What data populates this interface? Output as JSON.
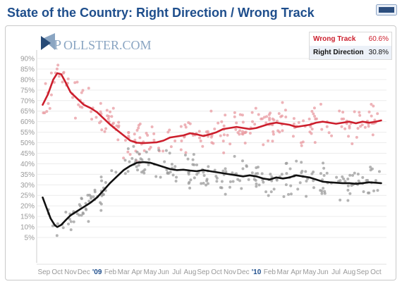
{
  "page": {
    "title": "State of the Country: Right Direction / Wrong Track",
    "expand_icon": "expand-window-icon",
    "logo": {
      "prefix": "P",
      "text": "OLLSTER.COM",
      "icon": "pollster-logo-icon"
    }
  },
  "legend": [
    {
      "name": "Wrong Track",
      "value": "60.6%",
      "color": "#cc1e2c"
    },
    {
      "name": "Right Direction",
      "value": "30.8%",
      "color": "#111111"
    }
  ],
  "chart_data": {
    "type": "line",
    "title": "State of the Country: Right Direction / Wrong Track",
    "xlabel": "",
    "ylabel": "",
    "ylim": [
      0,
      92
    ],
    "x_month_range": [
      "2008-09",
      "2010-10"
    ],
    "y_ticks": [
      "90%",
      "85%",
      "80%",
      "75%",
      "70%",
      "65%",
      "60%",
      "55%",
      "50%",
      "45%",
      "40%",
      "35%",
      "30%",
      "25%",
      "20%",
      "15%",
      "10%",
      "5%"
    ],
    "x_ticks": [
      {
        "label": "Sep",
        "m": 0
      },
      {
        "label": "Oct",
        "m": 1
      },
      {
        "label": "Nov",
        "m": 2
      },
      {
        "label": "Dec",
        "m": 3
      },
      {
        "label": "'09",
        "m": 4,
        "year": true
      },
      {
        "label": "Feb",
        "m": 5
      },
      {
        "label": "Mar",
        "m": 6
      },
      {
        "label": "Apr",
        "m": 7
      },
      {
        "label": "May",
        "m": 8
      },
      {
        "label": "Jun",
        "m": 9
      },
      {
        "label": "Jul",
        "m": 10
      },
      {
        "label": "Aug",
        "m": 11
      },
      {
        "label": "Sep",
        "m": 12
      },
      {
        "label": "Oct",
        "m": 13
      },
      {
        "label": "Nov",
        "m": 14
      },
      {
        "label": "Dec",
        "m": 15
      },
      {
        "label": "'10",
        "m": 16,
        "year": true
      },
      {
        "label": "Feb",
        "m": 17
      },
      {
        "label": "Mar",
        "m": 18
      },
      {
        "label": "Apr",
        "m": 19
      },
      {
        "label": "May",
        "m": 20
      },
      {
        "label": "Jun",
        "m": 21
      },
      {
        "label": "Jul",
        "m": 22
      },
      {
        "label": "Aug",
        "m": 23
      },
      {
        "label": "Sep",
        "m": 24
      },
      {
        "label": "Oct",
        "m": 25
      }
    ],
    "grid": true,
    "legend_position": "top-right",
    "series": [
      {
        "name": "Wrong Track",
        "color": "#cc1e2c",
        "dot_color": "#e89aa0",
        "trend": [
          [
            -0.1,
            68
          ],
          [
            0.3,
            73
          ],
          [
            0.7,
            80
          ],
          [
            1.0,
            83
          ],
          [
            1.3,
            82.5
          ],
          [
            1.6,
            79
          ],
          [
            2.0,
            74
          ],
          [
            2.5,
            71
          ],
          [
            3.0,
            68
          ],
          [
            3.5,
            66.5
          ],
          [
            4.0,
            64.5
          ],
          [
            4.5,
            61.5
          ],
          [
            5.0,
            58.5
          ],
          [
            5.5,
            56
          ],
          [
            6.0,
            53.5
          ],
          [
            6.5,
            51
          ],
          [
            7.0,
            50
          ],
          [
            7.5,
            49.8
          ],
          [
            8.0,
            50
          ],
          [
            8.5,
            50.2
          ],
          [
            9.0,
            51
          ],
          [
            9.5,
            52.5
          ],
          [
            10.0,
            53
          ],
          [
            10.5,
            53.5
          ],
          [
            11.0,
            54.5
          ],
          [
            11.5,
            54
          ],
          [
            12.0,
            53.2
          ],
          [
            12.5,
            54
          ],
          [
            13.0,
            55
          ],
          [
            13.5,
            56.5
          ],
          [
            14.0,
            57
          ],
          [
            14.5,
            57.5
          ],
          [
            15.0,
            57
          ],
          [
            15.5,
            56.5
          ],
          [
            16.0,
            57
          ],
          [
            16.5,
            58
          ],
          [
            17.0,
            59
          ],
          [
            17.5,
            59.5
          ],
          [
            18.0,
            59
          ],
          [
            18.5,
            58.5
          ],
          [
            19.0,
            57.5
          ],
          [
            19.5,
            58
          ],
          [
            20.0,
            58.5
          ],
          [
            20.5,
            59.5
          ],
          [
            21.0,
            60
          ],
          [
            21.5,
            59.5
          ],
          [
            22.0,
            59
          ],
          [
            22.5,
            59.5
          ],
          [
            23.0,
            60
          ],
          [
            23.5,
            59.2
          ],
          [
            24.0,
            60
          ],
          [
            24.5,
            59.5
          ],
          [
            25.0,
            60
          ],
          [
            25.4,
            60.6
          ]
        ],
        "spread": 4.5
      },
      {
        "name": "Right Direction",
        "color": "#111111",
        "dot_color": "#9b9b9b",
        "trend": [
          [
            -0.1,
            24
          ],
          [
            0.2,
            19
          ],
          [
            0.5,
            14
          ],
          [
            0.8,
            11
          ],
          [
            1.0,
            10
          ],
          [
            1.3,
            11
          ],
          [
            1.6,
            13
          ],
          [
            2.0,
            15.5
          ],
          [
            2.5,
            17.5
          ],
          [
            3.0,
            19.5
          ],
          [
            3.5,
            21.5
          ],
          [
            4.0,
            24
          ],
          [
            4.5,
            27.5
          ],
          [
            5.0,
            31
          ],
          [
            5.5,
            34
          ],
          [
            6.0,
            37
          ],
          [
            6.5,
            39
          ],
          [
            7.0,
            40.5
          ],
          [
            7.5,
            40.8
          ],
          [
            8.0,
            40.5
          ],
          [
            8.5,
            39.5
          ],
          [
            9.0,
            38.5
          ],
          [
            9.5,
            37.5
          ],
          [
            10.0,
            37
          ],
          [
            10.5,
            37.2
          ],
          [
            11.0,
            36.8
          ],
          [
            11.5,
            36.5
          ],
          [
            12.0,
            37
          ],
          [
            12.5,
            36.5
          ],
          [
            13.0,
            36
          ],
          [
            13.5,
            35.5
          ],
          [
            14.0,
            35
          ],
          [
            14.5,
            34.5
          ],
          [
            15.0,
            34
          ],
          [
            15.5,
            34.5
          ],
          [
            16.0,
            34
          ],
          [
            16.5,
            33
          ],
          [
            17.0,
            32.5
          ],
          [
            17.5,
            33.5
          ],
          [
            18.0,
            33
          ],
          [
            18.5,
            33.5
          ],
          [
            19.0,
            34.5
          ],
          [
            19.5,
            34
          ],
          [
            20.0,
            33.5
          ],
          [
            20.5,
            32.5
          ],
          [
            21.0,
            31.5
          ],
          [
            21.5,
            31.2
          ],
          [
            22.0,
            31
          ],
          [
            22.5,
            30.8
          ],
          [
            23.0,
            30.8
          ],
          [
            23.5,
            30.5
          ],
          [
            24.0,
            30.8
          ],
          [
            24.5,
            31.2
          ],
          [
            25.0,
            31
          ],
          [
            25.4,
            30.8
          ]
        ],
        "spread": 3.8
      }
    ]
  }
}
